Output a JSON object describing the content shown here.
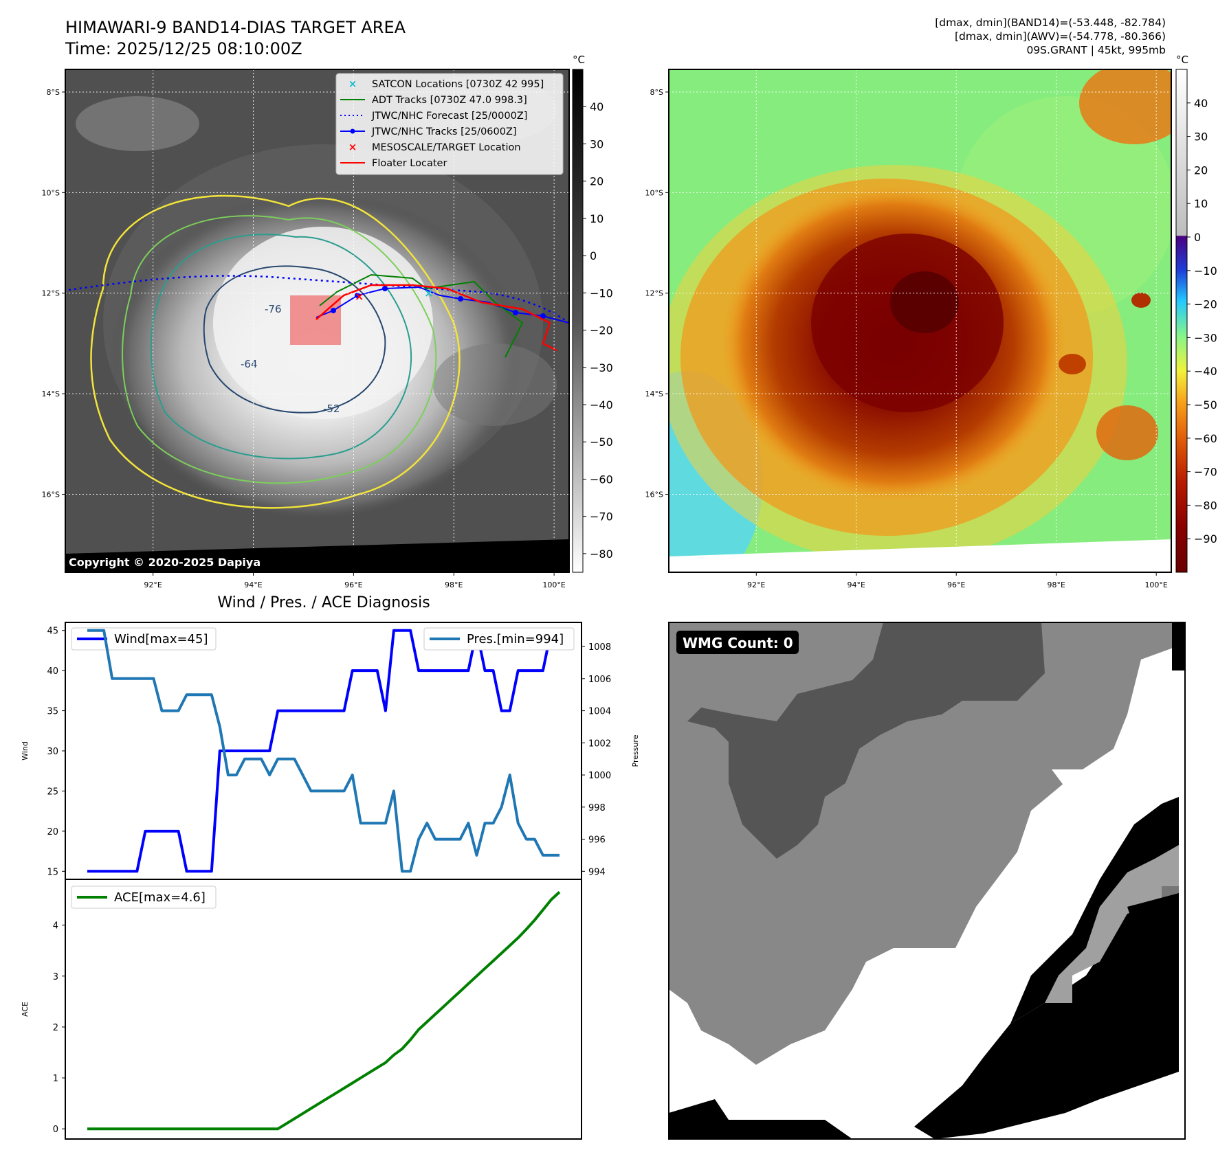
{
  "header": {
    "title": "HIMAWARI-9 BAND14-DIAS TARGET AREA",
    "time": "Time: 2025/12/25 08:10:00Z",
    "info": [
      "[dmax, dmin](BAND14)=(-53.448, -82.784)",
      "[dmax, dmin](AWV)=(-54.778, -80.366)",
      "09S.GRANT | 45kt, 995mb"
    ]
  },
  "copyright": "Copyright © 2020-2025 Dapiya",
  "map": {
    "lat_labels": [
      "8°S",
      "10°S",
      "12°S",
      "14°S",
      "16°S"
    ],
    "lat_values": [
      -8,
      -10,
      -12,
      -14,
      -16
    ],
    "lon_labels": [
      "92°E",
      "94°E",
      "96°E",
      "98°E",
      "100°E"
    ],
    "lon_values": [
      92,
      94,
      96,
      98,
      100
    ],
    "lon_range": [
      90.25,
      100.3
    ],
    "lat_range": [
      -17.55,
      -7.55
    ],
    "contour_labels": [
      "-76",
      "-64",
      "-52"
    ],
    "legend": [
      {
        "label": "SATCON Locations [0730Z 42 995]",
        "color": "#17becf",
        "style": "x"
      },
      {
        "label": "ADT Tracks [0730Z 47.0 998.3]",
        "color": "#008000",
        "style": "line"
      },
      {
        "label": "JTWC/NHC Forecast [25/0000Z]",
        "color": "#0000ff",
        "style": "dotted"
      },
      {
        "label": "JTWC/NHC Tracks [25/0600Z]",
        "color": "#0000ff",
        "style": "line-dot"
      },
      {
        "label": "MESOSCALE/TARGET Location",
        "color": "#ff0000",
        "style": "x"
      },
      {
        "label": "Floater Locater",
        "color": "#ff0000",
        "style": "line"
      }
    ]
  },
  "colorbar_left": {
    "unit": "°C",
    "ticks": [
      "40",
      "30",
      "20",
      "10",
      "0",
      "−10",
      "−20",
      "−30",
      "−40",
      "−50",
      "−60",
      "−70",
      "−80"
    ],
    "range": [
      -85,
      50
    ]
  },
  "colorbar_right": {
    "unit": "°C",
    "ticks": [
      "40",
      "30",
      "20",
      "10",
      "0",
      "−10",
      "−20",
      "−30",
      "−40",
      "−50",
      "−60",
      "−70",
      "−80",
      "−90"
    ],
    "range": [
      -100,
      50
    ]
  },
  "wmg": {
    "label": "WMG Count: 0"
  },
  "colors": {
    "wind": "#0000ff",
    "pressure": "#1f77b4",
    "ace": "#008000",
    "floater_box": "#f08080"
  },
  "chart_data": [
    {
      "type": "line",
      "title": "Wind / Pres. / ACE Diagnosis",
      "ylabel": "Wind",
      "y2label": "Pressure",
      "ylim": [
        14.0,
        46.0
      ],
      "y2lim": [
        993.5,
        1009.5
      ],
      "yticks": [
        "15",
        "20",
        "25",
        "30",
        "35",
        "40",
        "45"
      ],
      "y2ticks": [
        "994",
        "996",
        "998",
        "1000",
        "1002",
        "1004",
        "1006",
        "1008"
      ],
      "series": [
        {
          "name": "Wind[max=45]",
          "axis": "left",
          "values": [
            15,
            15,
            15,
            15,
            15,
            15,
            15,
            20,
            20,
            20,
            20,
            20,
            15,
            15,
            15,
            15,
            30,
            30,
            30,
            30,
            30,
            30,
            30,
            35,
            35,
            35,
            35,
            35,
            35,
            35,
            35,
            35,
            40,
            40,
            40,
            40,
            35,
            45,
            45,
            45,
            40,
            40,
            40,
            40,
            40,
            40,
            40,
            45,
            40,
            40,
            35,
            35,
            40,
            40,
            40,
            40,
            45,
            45
          ]
        },
        {
          "name": "Pres.[min=994]",
          "axis": "right",
          "values": [
            1009,
            1009,
            1009,
            1006,
            1006,
            1006,
            1006,
            1006,
            1006,
            1004,
            1004,
            1004,
            1005,
            1005,
            1005,
            1005,
            1003,
            1000,
            1000,
            1001,
            1001,
            1001,
            1000,
            1001,
            1001,
            1001,
            1000,
            999,
            999,
            999,
            999,
            999,
            1000,
            997,
            997,
            997,
            997,
            999,
            994,
            994,
            996,
            997,
            996,
            996,
            996,
            996,
            997,
            995,
            997,
            997,
            998,
            1000,
            997,
            996,
            996,
            995,
            995,
            995
          ]
        }
      ]
    },
    {
      "type": "line",
      "ylabel": "ACE",
      "ylim": [
        -0.2,
        4.9
      ],
      "yticks": [
        "0",
        "1",
        "2",
        "3",
        "4"
      ],
      "series": [
        {
          "name": "ACE[max=4.6]",
          "values": [
            0,
            0,
            0,
            0,
            0,
            0,
            0,
            0,
            0,
            0,
            0,
            0,
            0,
            0,
            0,
            0,
            0,
            0,
            0,
            0,
            0,
            0,
            0,
            0,
            0.1,
            0.2,
            0.3,
            0.4,
            0.5,
            0.6,
            0.7,
            0.8,
            0.9,
            1.0,
            1.1,
            1.2,
            1.3,
            1.45,
            1.57,
            1.75,
            1.95,
            2.1,
            2.25,
            2.4,
            2.55,
            2.7,
            2.85,
            3.0,
            3.15,
            3.3,
            3.45,
            3.6,
            3.75,
            3.92,
            4.1,
            4.3,
            4.5,
            4.65
          ]
        }
      ]
    }
  ]
}
